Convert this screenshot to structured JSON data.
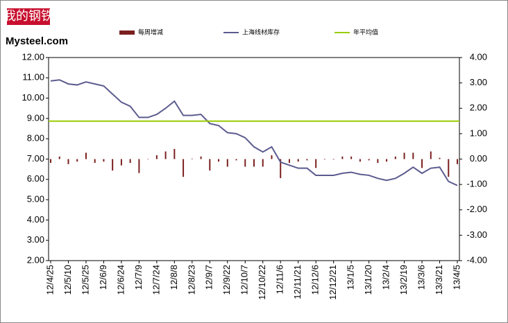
{
  "logo": {
    "cn": "我的钢铁",
    "en": "Mysteel.com"
  },
  "chart_data": {
    "type": "bar-line",
    "categories": [
      "12/4/25",
      null,
      "12/5/10",
      null,
      "12/5/25",
      null,
      "12/6/9",
      null,
      "12/6/24",
      null,
      "12/7/9",
      null,
      "12/7/24",
      null,
      "12/8/8",
      null,
      "12/8/23",
      null,
      "12/9/7",
      null,
      "12/9/22",
      null,
      "12/10/7",
      null,
      "12/10/22",
      null,
      "12/11/6",
      null,
      "12/11/21",
      null,
      "12/12/6",
      null,
      "12/12/21",
      null,
      "13/1/5",
      null,
      "13/1/20",
      null,
      "13/2/4",
      null,
      "13/2/19",
      null,
      "13/3/6",
      null,
      "13/3/21",
      null,
      "13/4/5"
    ],
    "series": [
      {
        "name": "每周增减",
        "type": "bar",
        "axis": "y2",
        "color": "#7b1f1f",
        "values": [
          -0.15,
          0.1,
          -0.2,
          -0.1,
          0.25,
          -0.15,
          -0.1,
          -0.45,
          -0.25,
          -0.15,
          -0.55,
          0.0,
          0.15,
          0.3,
          0.4,
          -0.7,
          0.02,
          0.1,
          -0.45,
          -0.1,
          -0.3,
          -0.05,
          -0.3,
          -0.3,
          -0.3,
          0.15,
          -0.75,
          -0.15,
          -0.1,
          -0.05,
          -0.35,
          -0.02,
          -0.02,
          0.1,
          0.1,
          -0.1,
          -0.05,
          -0.15,
          -0.1,
          0.1,
          0.25,
          0.25,
          -0.35,
          0.3,
          0.05,
          -0.7,
          -0.2
        ]
      },
      {
        "name": "上海线材库存",
        "type": "line",
        "color": "#5b5b8f",
        "values": [
          10.85,
          10.9,
          10.7,
          10.65,
          10.8,
          10.7,
          10.6,
          10.2,
          9.8,
          9.6,
          9.05,
          9.05,
          9.2,
          9.5,
          9.85,
          9.15,
          9.15,
          9.2,
          8.75,
          8.65,
          8.3,
          8.25,
          8.05,
          7.6,
          7.35,
          7.6,
          6.85,
          6.7,
          6.55,
          6.55,
          6.2,
          6.2,
          6.2,
          6.3,
          6.35,
          6.25,
          6.2,
          6.05,
          5.95,
          6.05,
          6.3,
          6.6,
          6.3,
          6.55,
          6.6,
          5.9,
          5.7
        ]
      }
    ],
    "reference_line": {
      "name": "年平均值",
      "value": 8.87,
      "color": "#99cc00"
    },
    "ylim": [
      2,
      12
    ],
    "yticks": [
      {
        "value": 2,
        "label": "2.00"
      },
      {
        "value": 3,
        "label": "3.00"
      },
      {
        "value": 4,
        "label": "4.00"
      },
      {
        "value": 5,
        "label": "5.00"
      },
      {
        "value": 6,
        "label": "6.00"
      },
      {
        "value": 7,
        "label": "7.00"
      },
      {
        "value": 8,
        "label": "8.00"
      },
      {
        "value": 9,
        "label": "9.00"
      },
      {
        "value": 10,
        "label": "10.00"
      },
      {
        "value": 11,
        "label": "11.00"
      },
      {
        "value": 12,
        "label": "12.00"
      }
    ],
    "y2lim": [
      -4,
      4
    ],
    "y2ticks": [
      {
        "value": -4,
        "label": "-4.00"
      },
      {
        "value": -3,
        "label": "-3.00"
      },
      {
        "value": -2,
        "label": "-2.00"
      },
      {
        "value": -1,
        "label": "-1.00"
      },
      {
        "value": 0,
        "label": "0.00"
      },
      {
        "value": 1,
        "label": "1.00"
      },
      {
        "value": 2,
        "label": "2.00"
      },
      {
        "value": 3,
        "label": "3.00"
      },
      {
        "value": 4,
        "label": "4.00"
      }
    ],
    "grid": false
  }
}
